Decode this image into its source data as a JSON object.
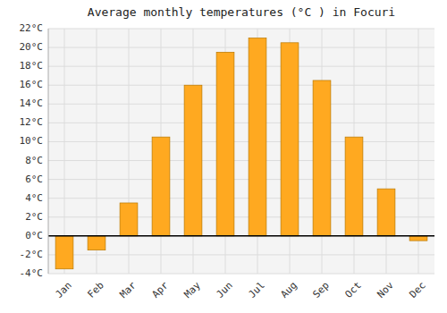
{
  "chart_data": {
    "type": "bar",
    "title": "Average monthly temperatures (°C ) in Focuri",
    "categories": [
      "Jan",
      "Feb",
      "Mar",
      "Apr",
      "May",
      "Jun",
      "Jul",
      "Aug",
      "Sep",
      "Oct",
      "Nov",
      "Dec"
    ],
    "values": [
      -3.5,
      -1.5,
      3.5,
      10.5,
      16.0,
      19.5,
      21.0,
      20.5,
      16.5,
      10.5,
      5.0,
      -0.5
    ],
    "color": "#FFA920",
    "ylim": [
      -4,
      22
    ],
    "yticks": [
      {
        "value": -4,
        "label": "-4°C"
      },
      {
        "value": -2,
        "label": "-2°C"
      },
      {
        "value": 0,
        "label": "0°C"
      },
      {
        "value": 2,
        "label": "2°C"
      },
      {
        "value": 4,
        "label": "4°C"
      },
      {
        "value": 6,
        "label": "6°C"
      },
      {
        "value": 8,
        "label": "8°C"
      },
      {
        "value": 10,
        "label": "10°C"
      },
      {
        "value": 12,
        "label": "12°C"
      },
      {
        "value": 14,
        "label": "14°C"
      },
      {
        "value": 16,
        "label": "16°C"
      },
      {
        "value": 18,
        "label": "18°C"
      },
      {
        "value": 20,
        "label": "20°C"
      },
      {
        "value": 22,
        "label": "22°C"
      }
    ],
    "grid": true
  }
}
